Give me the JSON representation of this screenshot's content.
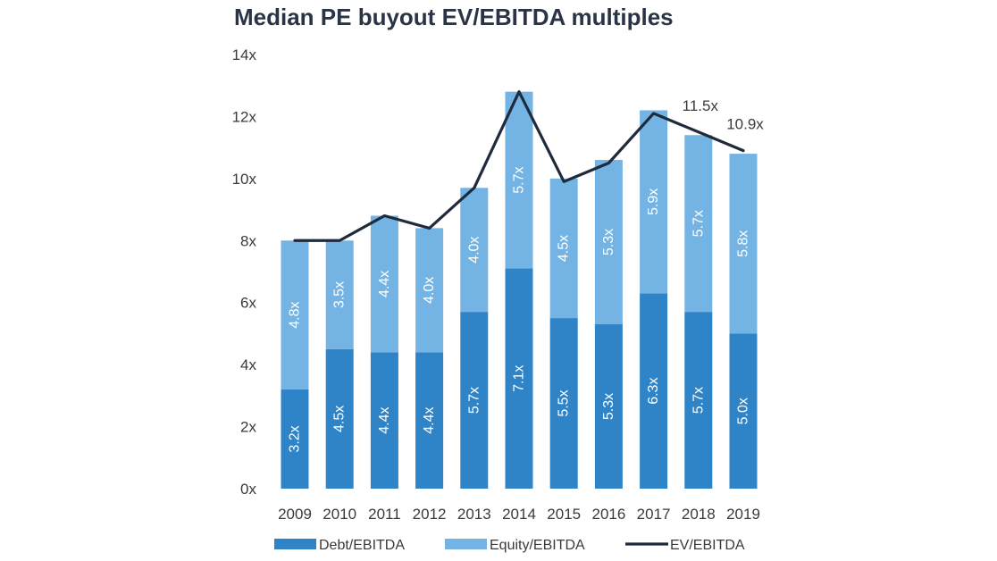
{
  "chart_data": {
    "type": "bar",
    "stacked": true,
    "title": "Median PE buyout EV/EBITDA multiples",
    "categories": [
      "2009",
      "2010",
      "2011",
      "2012",
      "2013",
      "2014",
      "2015",
      "2016",
      "2017",
      "2018",
      "2019"
    ],
    "series": [
      {
        "name": "Debt/EBITDA",
        "kind": "bar",
        "color": "#2f84c7",
        "values": [
          3.2,
          4.5,
          4.4,
          4.4,
          5.7,
          7.1,
          5.5,
          5.3,
          6.3,
          5.7,
          5.0
        ],
        "labels": [
          "3.2x",
          "4.5x",
          "4.4x",
          "4.4x",
          "5.7x",
          "7.1x",
          "5.5x",
          "5.3x",
          "6.3x",
          "5.7x",
          "5.0x"
        ]
      },
      {
        "name": "Equity/EBITDA",
        "kind": "bar",
        "color": "#74b4e4",
        "values": [
          4.8,
          3.5,
          4.4,
          4.0,
          4.0,
          5.7,
          4.5,
          5.3,
          5.9,
          5.7,
          5.8
        ],
        "labels": [
          "4.8x",
          "3.5x",
          "4.4x",
          "4.0x",
          "4.0x",
          "5.7x",
          "4.5x",
          "5.3x",
          "5.9x",
          "5.7x",
          "5.8x"
        ]
      },
      {
        "name": "EV/EBITDA",
        "kind": "line",
        "color": "#1f2b3d",
        "values": [
          8.0,
          8.0,
          8.8,
          8.4,
          9.7,
          12.8,
          9.9,
          10.5,
          12.1,
          11.5,
          10.9
        ]
      }
    ],
    "annotations": [
      {
        "category": "2018",
        "text": "11.5x"
      },
      {
        "category": "2019",
        "text": "10.9x"
      }
    ],
    "y_ticks": [
      "0x",
      "2x",
      "4x",
      "6x",
      "8x",
      "10x",
      "12x",
      "14x"
    ],
    "ylim": [
      0,
      14
    ],
    "grid": false,
    "legend_position": "bottom"
  }
}
